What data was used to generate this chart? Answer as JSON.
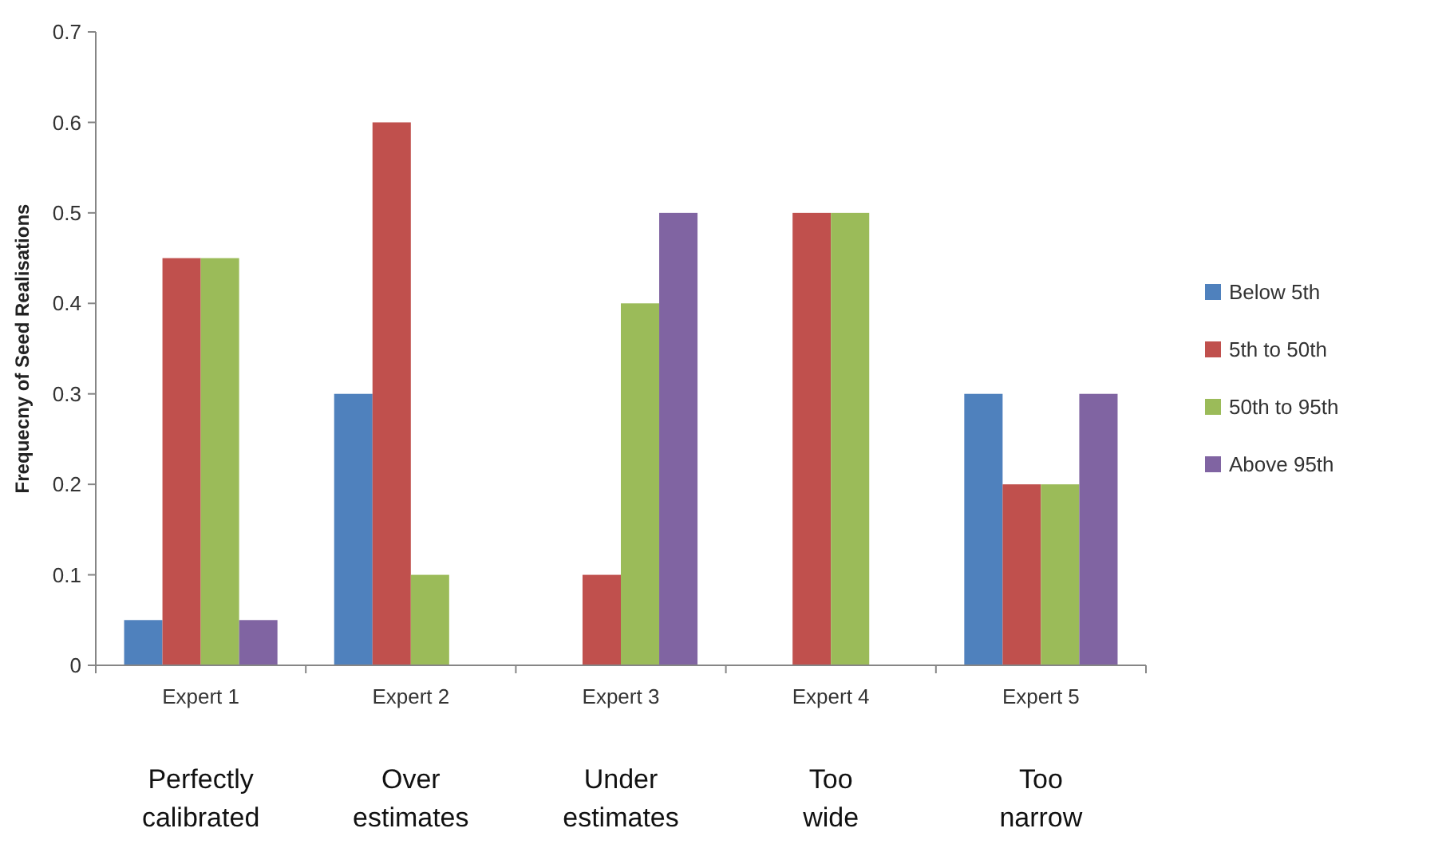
{
  "chart_data": {
    "type": "bar",
    "ylabel": "Frequecny of Seed Realisations",
    "categories": [
      "Expert 1",
      "Expert 2",
      "Expert 3",
      "Expert 4",
      "Expert 5"
    ],
    "series": [
      {
        "name": "Below 5th",
        "color": "#4f81bd",
        "values": [
          0.05,
          0.3,
          0,
          0,
          0.3
        ]
      },
      {
        "name": "5th to 50th",
        "color": "#c0504d",
        "values": [
          0.45,
          0.6,
          0.1,
          0.5,
          0.2
        ]
      },
      {
        "name": "50th to 95th",
        "color": "#9bbb59",
        "values": [
          0.45,
          0.1,
          0.4,
          0.5,
          0.2
        ]
      },
      {
        "name": "Above 95th",
        "color": "#8064a2",
        "values": [
          0.05,
          0,
          0.5,
          0,
          0.3
        ]
      }
    ],
    "ylim": [
      0,
      0.7
    ],
    "yticks": [
      0,
      0.1,
      0.2,
      0.3,
      0.4,
      0.5,
      0.6,
      0.7
    ],
    "grid": false,
    "legend": "right",
    "annotations": [
      "Perfectly calibrated",
      "Over estimates",
      "Under estimates",
      "Too wide",
      "Too narrow"
    ]
  }
}
